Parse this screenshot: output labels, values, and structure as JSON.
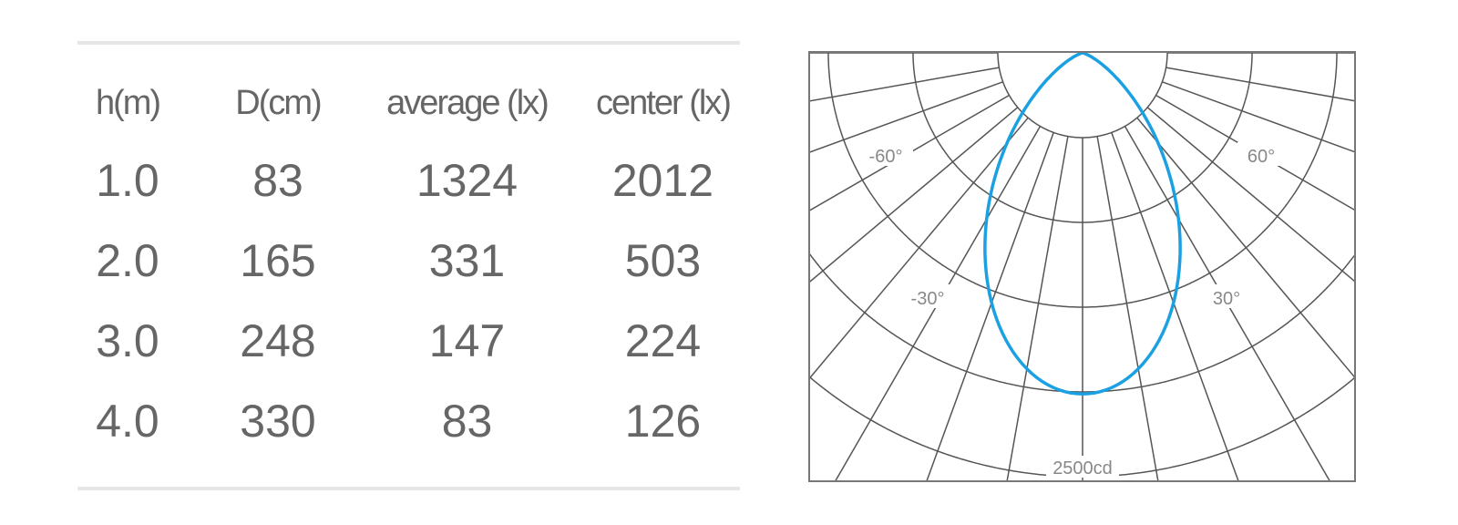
{
  "chart_data": [
    {
      "type": "table",
      "columns": [
        "h(m)",
        "D(cm)",
        "average (lx)",
        "center (lx)"
      ],
      "rows": [
        [
          "1.0",
          "83",
          "1324",
          "2012"
        ],
        [
          "2.0",
          "165",
          "331",
          "503"
        ],
        [
          "3.0",
          "248",
          "147",
          "224"
        ],
        [
          "4.0",
          "330",
          "83",
          "126"
        ]
      ]
    },
    {
      "type": "line",
      "subtype": "polar",
      "angle_labels": [
        "-60°",
        "60°",
        "-30°",
        "30°"
      ],
      "scale_label": "2500cd",
      "radial_rings_cd": [
        500,
        1000,
        1500,
        2000,
        2500
      ],
      "radial_line_step_deg": 10,
      "series": [
        {
          "angles_deg": [
            -90,
            -80,
            -70,
            -60,
            -50,
            -40,
            -30,
            -20,
            -10,
            0,
            10,
            20,
            30,
            40,
            50,
            60,
            70,
            80,
            90
          ],
          "values_cd": [
            0,
            0,
            28,
            126,
            344,
            693,
            1132,
            1569,
            1893,
            2012,
            1893,
            1569,
            1132,
            693,
            344,
            126,
            28,
            0,
            0
          ],
          "color": "#1ba1e2"
        }
      ],
      "grid_color": "#555555"
    }
  ]
}
